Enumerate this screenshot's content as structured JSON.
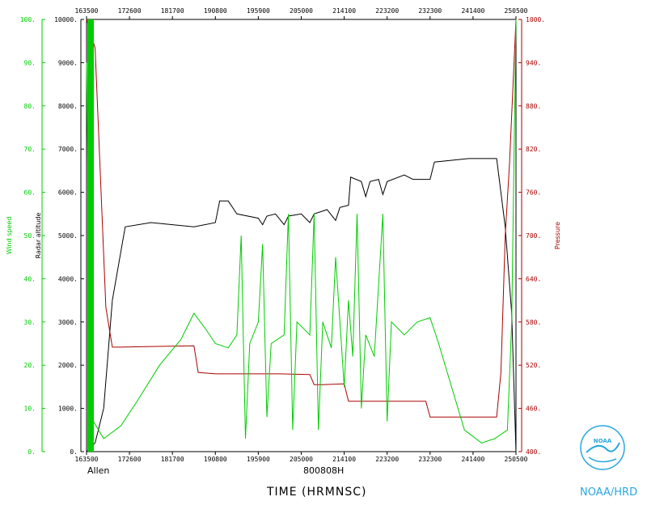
{
  "chart_data": {
    "type": "line",
    "storm_label": "Allen",
    "date_label": "800808H",
    "xlabel": "TIME (HRMNSC)",
    "x_ticks": [
      "163500",
      "172600",
      "181700",
      "190800",
      "195900",
      "205000",
      "214100",
      "223200",
      "232300",
      "241400",
      "250500"
    ],
    "xlim": [
      "163500",
      "250500"
    ],
    "axes": {
      "wind": {
        "label": "Wind speed",
        "ticks": [
          "0.",
          "10.",
          "20.",
          "30.",
          "40.",
          "50.",
          "60.",
          "70.",
          "80.",
          "90.",
          "100."
        ],
        "ylim": [
          0,
          100
        ],
        "color": "#00cc00"
      },
      "altitude": {
        "label": "Radar altitude",
        "ticks": [
          "0.",
          "1000.",
          "2000.",
          "3000.",
          "4000.",
          "5000.",
          "6000.",
          "7000.",
          "8000.",
          "9000.",
          "10000."
        ],
        "ylim": [
          0,
          10000
        ],
        "color": "#000000"
      },
      "pressure": {
        "label": "Pressure",
        "ticks": [
          "400.",
          "460.",
          "520.",
          "580.",
          "640.",
          "700.",
          "760.",
          "820.",
          "880.",
          "940.",
          "1000."
        ],
        "ylim": [
          400,
          1000
        ],
        "color": "#aa0000"
      }
    },
    "series": [
      {
        "name": "Radar altitude",
        "axis": "altitude",
        "color": "#000000",
        "points": [
          [
            0.0,
            0
          ],
          [
            0.02,
            200
          ],
          [
            0.04,
            1000
          ],
          [
            0.06,
            3500
          ],
          [
            0.09,
            5200
          ],
          [
            0.15,
            5300
          ],
          [
            0.25,
            5200
          ],
          [
            0.3,
            5300
          ],
          [
            0.31,
            5800
          ],
          [
            0.33,
            5800
          ],
          [
            0.35,
            5500
          ],
          [
            0.4,
            5400
          ],
          [
            0.41,
            5250
          ],
          [
            0.42,
            5450
          ],
          [
            0.44,
            5500
          ],
          [
            0.46,
            5250
          ],
          [
            0.47,
            5450
          ],
          [
            0.5,
            5500
          ],
          [
            0.52,
            5300
          ],
          [
            0.53,
            5500
          ],
          [
            0.56,
            5600
          ],
          [
            0.58,
            5350
          ],
          [
            0.59,
            5650
          ],
          [
            0.61,
            5700
          ],
          [
            0.615,
            6350
          ],
          [
            0.64,
            6250
          ],
          [
            0.65,
            5900
          ],
          [
            0.66,
            6250
          ],
          [
            0.68,
            6300
          ],
          [
            0.69,
            5950
          ],
          [
            0.7,
            6250
          ],
          [
            0.74,
            6400
          ],
          [
            0.76,
            6300
          ],
          [
            0.8,
            6300
          ],
          [
            0.81,
            6700
          ],
          [
            0.89,
            6780
          ],
          [
            0.955,
            6780
          ],
          [
            0.975,
            5200
          ],
          [
            0.99,
            3200
          ],
          [
            1.0,
            0
          ]
        ]
      },
      {
        "name": "Pressure",
        "axis": "pressure",
        "color": "#aa0000",
        "points": [
          [
            0.0,
            1000
          ],
          [
            0.02,
            960
          ],
          [
            0.045,
            600
          ],
          [
            0.06,
            545
          ],
          [
            0.08,
            545
          ],
          [
            0.15,
            546
          ],
          [
            0.25,
            547
          ],
          [
            0.26,
            510
          ],
          [
            0.3,
            508
          ],
          [
            0.4,
            508
          ],
          [
            0.45,
            508
          ],
          [
            0.52,
            507
          ],
          [
            0.53,
            493
          ],
          [
            0.55,
            493
          ],
          [
            0.6,
            494
          ],
          [
            0.61,
            470
          ],
          [
            0.65,
            470
          ],
          [
            0.72,
            470
          ],
          [
            0.79,
            470
          ],
          [
            0.8,
            448
          ],
          [
            0.85,
            448
          ],
          [
            0.955,
            448
          ],
          [
            0.965,
            510
          ],
          [
            0.975,
            700
          ],
          [
            0.985,
            800
          ],
          [
            1.0,
            1000
          ]
        ]
      },
      {
        "name": "Wind speed",
        "axis": "wind",
        "color": "#00cc00",
        "points": [
          [
            0.0,
            90
          ],
          [
            0.01,
            8
          ],
          [
            0.04,
            3
          ],
          [
            0.08,
            6
          ],
          [
            0.12,
            12
          ],
          [
            0.17,
            20
          ],
          [
            0.22,
            26
          ],
          [
            0.25,
            32
          ],
          [
            0.28,
            28
          ],
          [
            0.3,
            25
          ],
          [
            0.33,
            24
          ],
          [
            0.35,
            27
          ],
          [
            0.36,
            50
          ],
          [
            0.37,
            3
          ],
          [
            0.38,
            25
          ],
          [
            0.4,
            30
          ],
          [
            0.41,
            48
          ],
          [
            0.42,
            8
          ],
          [
            0.43,
            25
          ],
          [
            0.46,
            27
          ],
          [
            0.47,
            55
          ],
          [
            0.48,
            5
          ],
          [
            0.49,
            30
          ],
          [
            0.52,
            27
          ],
          [
            0.53,
            55
          ],
          [
            0.54,
            5
          ],
          [
            0.55,
            30
          ],
          [
            0.57,
            24
          ],
          [
            0.58,
            45
          ],
          [
            0.6,
            15
          ],
          [
            0.61,
            35
          ],
          [
            0.62,
            22
          ],
          [
            0.63,
            55
          ],
          [
            0.64,
            10
          ],
          [
            0.65,
            27
          ],
          [
            0.67,
            22
          ],
          [
            0.69,
            55
          ],
          [
            0.7,
            7
          ],
          [
            0.71,
            30
          ],
          [
            0.74,
            27
          ],
          [
            0.77,
            30
          ],
          [
            0.8,
            31
          ],
          [
            0.82,
            25
          ],
          [
            0.85,
            15
          ],
          [
            0.88,
            5
          ],
          [
            0.92,
            2
          ],
          [
            0.95,
            3
          ],
          [
            0.98,
            5
          ],
          [
            0.99,
            30
          ],
          [
            1.0,
            100
          ]
        ]
      }
    ]
  },
  "branding": {
    "logo_text": "NOAA",
    "org": "NOAA/HRD"
  }
}
